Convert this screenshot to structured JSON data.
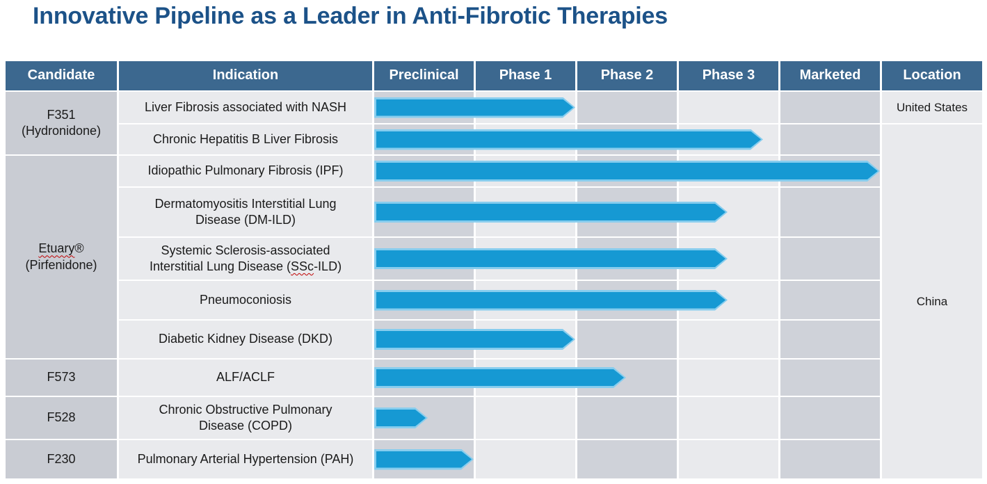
{
  "title": "Innovative Pipeline as a Leader in Anti-Fibrotic Therapies",
  "colors": {
    "title_text": "#1C5288",
    "header_bg": "#3C688F",
    "header_text": "#FFFFFF",
    "candidate_cell_bg": "#C9CCD3",
    "light_cell_bg": "#E9EAED",
    "dark_cell_bg": "#CFD2D9",
    "arrow_fill": "#1699D3",
    "arrow_edge": "#87CDEE",
    "spellcheck_squiggle": "#C00000"
  },
  "chart_data": {
    "type": "table",
    "title": "Innovative Pipeline as a Leader in Anti-Fibrotic Therapies",
    "columns": [
      "Candidate",
      "Indication",
      "Preclinical",
      "Phase 1",
      "Phase 2",
      "Phase 3",
      "Marketed",
      "Location"
    ],
    "phase_columns": [
      "Preclinical",
      "Phase 1",
      "Phase 2",
      "Phase 3",
      "Marketed"
    ],
    "progress_units": "columns spanned by arrow: 1=through Preclinical, 2=through Phase 1, 3=through Phase 2, 4=through Phase 3, 5=through Marketed",
    "rows": [
      {
        "candidate_lines": [
          "F351",
          "(Hydronidone)"
        ],
        "candidate_rowspan": 2,
        "indication_lines": [
          "Liver Fibrosis associated with NASH"
        ],
        "phase_progress": 2.0,
        "location": "United States",
        "location_rowspan": 1
      },
      {
        "indication_lines": [
          "Chronic Hepatitis B Liver Fibrosis"
        ],
        "phase_progress": 3.85,
        "location": "China",
        "location_rowspan": 9
      },
      {
        "candidate_lines": [
          "Etuary®",
          "(Pirfenidone)"
        ],
        "candidate_rowspan": 5,
        "candidate_squiggle": [
          "Etuary"
        ],
        "indication_lines": [
          "Idiopathic Pulmonary Fibrosis (IPF)"
        ],
        "phase_progress": 5.0
      },
      {
        "indication_lines": [
          "Dermatomyositis Interstitial Lung",
          "Disease (DM-ILD)"
        ],
        "phase_progress": 3.5
      },
      {
        "indication_lines": [
          "Systemic Sclerosis-associated",
          "Interstitial Lung Disease (SSc-ILD)"
        ],
        "indication_squiggle": [
          "SSc"
        ],
        "phase_progress": 3.5
      },
      {
        "indication_lines": [
          "Pneumoconiosis"
        ],
        "phase_progress": 3.5
      },
      {
        "indication_lines": [
          "Diabetic Kidney Disease (DKD)"
        ],
        "phase_progress": 2.0
      },
      {
        "candidate_lines": [
          "F573"
        ],
        "candidate_rowspan": 1,
        "indication_lines": [
          "ALF/ACLF"
        ],
        "phase_progress": 2.5
      },
      {
        "candidate_lines": [
          "F528"
        ],
        "candidate_rowspan": 1,
        "indication_lines": [
          "Chronic Obstructive Pulmonary",
          "Disease (COPD)"
        ],
        "phase_progress": 0.55
      },
      {
        "candidate_lines": [
          "F230"
        ],
        "candidate_rowspan": 1,
        "indication_lines": [
          "Pulmonary Arterial Hypertension (PAH)"
        ],
        "phase_progress": 1.0
      }
    ]
  }
}
